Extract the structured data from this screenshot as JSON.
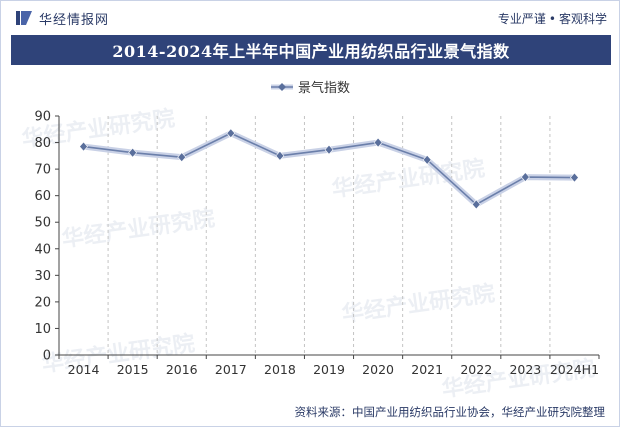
{
  "header": {
    "brand_name": "华经情报网",
    "tagline_left": "专业严谨",
    "tagline_right": "客观科学"
  },
  "chart_data": {
    "type": "line",
    "title": "2014-2024年上半年中国产业用纺织品行业景气指数",
    "categories": [
      "2014",
      "2015",
      "2016",
      "2017",
      "2018",
      "2019",
      "2020",
      "2021",
      "2022",
      "2023",
      "2024H1"
    ],
    "series": [
      {
        "name": "景气指数",
        "values": [
          78.5,
          76.2,
          74.5,
          83.5,
          75.0,
          77.3,
          80.0,
          73.5,
          56.7,
          67.0,
          66.8
        ]
      }
    ],
    "ylim": [
      0,
      90
    ],
    "yticks": [
      0,
      10,
      20,
      30,
      40,
      50,
      60,
      70,
      80,
      90
    ],
    "xlabel": "",
    "ylabel": "",
    "legend_position": "top-center",
    "grid": "vertical-dashed",
    "colors": {
      "line": "#6b7faa",
      "line_halo": "#c9d1e6",
      "marker": "#5a6f9c",
      "title_bg": "#2f4379"
    }
  },
  "footer": {
    "source": "资料来源：中国产业用纺织品行业协会，华经产业研究院整理"
  }
}
